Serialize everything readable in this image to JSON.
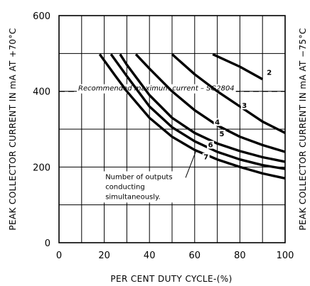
{
  "chart_data": {
    "type": "line",
    "title": "",
    "xlabel": "PER CENT DUTY CYCLE-(%)",
    "ylabel": "PEAK COLLECTOR CURRENT IN mA AT +70°C",
    "ylabel_right": "PEAK COLLECTOR CURRENT IN mA AT −75°C",
    "xlim": [
      0,
      100
    ],
    "ylim": [
      0,
      600
    ],
    "x_ticks": [
      0,
      20,
      40,
      60,
      80,
      100
    ],
    "y_ticks": [
      0,
      200,
      400,
      600
    ],
    "grid": true,
    "reference_line": {
      "y": 400,
      "label": "Recommended maximum current – SG2804"
    },
    "annotation": [
      "Number of outputs",
      "conducting",
      "simultaneously."
    ],
    "series": [
      {
        "name": "2",
        "x": [
          68,
          80,
          90
        ],
        "y": [
          498,
          465,
          432
        ]
      },
      {
        "name": "3",
        "x": [
          50,
          60,
          70,
          80,
          90,
          100
        ],
        "y": [
          498,
          445,
          400,
          360,
          320,
          290
        ]
      },
      {
        "name": "4",
        "x": [
          34,
          40,
          50,
          60,
          70,
          80,
          90,
          100
        ],
        "y": [
          498,
          460,
          400,
          350,
          310,
          280,
          258,
          240
        ]
      },
      {
        "name": "5",
        "x": [
          27,
          30,
          40,
          50,
          60,
          70,
          80,
          90,
          100
        ],
        "y": [
          498,
          470,
          390,
          330,
          290,
          262,
          242,
          226,
          214
        ]
      },
      {
        "name": "6",
        "x": [
          23,
          30,
          40,
          50,
          60,
          70,
          80,
          90,
          100
        ],
        "y": [
          498,
          440,
          360,
          305,
          268,
          240,
          220,
          205,
          195
        ]
      },
      {
        "name": "7",
        "x": [
          18,
          25,
          30,
          40,
          50,
          60,
          70,
          80,
          90,
          100
        ],
        "y": [
          498,
          440,
          400,
          330,
          280,
          245,
          220,
          200,
          183,
          170
        ]
      }
    ],
    "curve_label_positions": [
      {
        "name": "2",
        "x": 93,
        "y": 445
      },
      {
        "name": "3",
        "x": 82,
        "y": 358
      },
      {
        "name": "4",
        "x": 70,
        "y": 314
      },
      {
        "name": "5",
        "x": 72,
        "y": 283
      },
      {
        "name": "6",
        "x": 67,
        "y": 254
      },
      {
        "name": "7",
        "x": 65,
        "y": 222
      }
    ]
  }
}
